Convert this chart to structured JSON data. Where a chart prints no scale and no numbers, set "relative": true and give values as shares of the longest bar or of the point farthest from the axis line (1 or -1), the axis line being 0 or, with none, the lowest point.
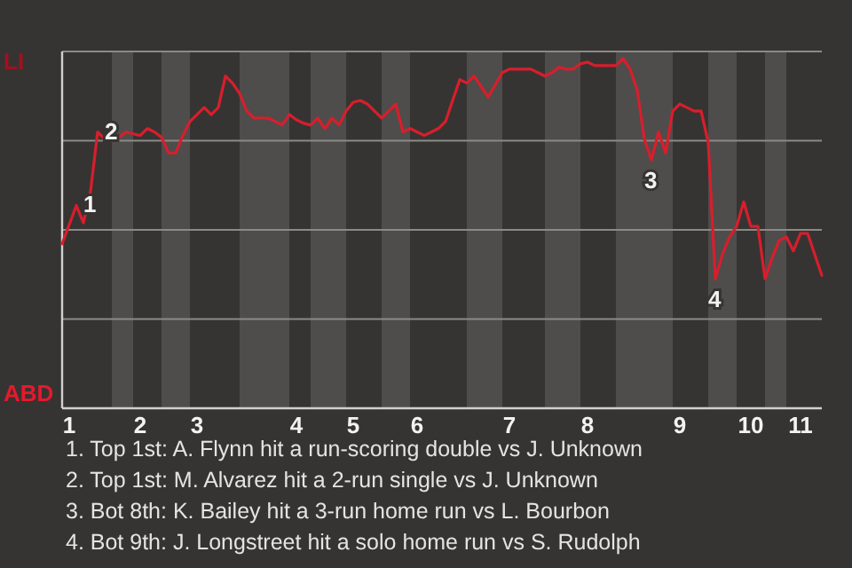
{
  "chart_data": {
    "type": "line",
    "relative": true,
    "grid": "y",
    "categories": [
      null,
      "1",
      null,
      null,
      null,
      null,
      null,
      null,
      null,
      null,
      null,
      "2",
      null,
      null,
      null,
      null,
      null,
      null,
      null,
      "3",
      null,
      null,
      null,
      null,
      null,
      null,
      null,
      null,
      null,
      null,
      null,
      null,
      null,
      "4",
      null,
      null,
      null,
      null,
      null,
      null,
      null,
      "5",
      null,
      null,
      null,
      null,
      null,
      null,
      null,
      null,
      "6",
      null,
      null,
      null,
      null,
      null,
      null,
      null,
      null,
      null,
      null,
      null,
      null,
      "7",
      null,
      null,
      null,
      null,
      null,
      null,
      null,
      null,
      null,
      null,
      "8",
      null,
      null,
      null,
      null,
      null,
      null,
      null,
      null,
      null,
      null,
      null,
      null,
      "9",
      null,
      null,
      null,
      null,
      null,
      null,
      null,
      null,
      null,
      "10",
      null,
      null,
      null,
      null,
      null,
      null,
      "11",
      null,
      null,
      null
    ],
    "series": [
      {
        "color": "#d81e2c",
        "values": [
          0.47,
          0.525,
          0.58,
          0.53,
          0.62,
          0.79,
          0.77,
          0.765,
          0.775,
          0.79,
          0.785,
          0.78,
          0.8,
          0.79,
          0.775,
          0.73,
          0.73,
          0.78,
          0.82,
          0.84,
          0.86,
          0.84,
          0.86,
          0.95,
          0.93,
          0.9,
          0.85,
          0.83,
          0.83,
          0.83,
          0.82,
          0.81,
          0.84,
          0.825,
          0.815,
          0.81,
          0.83,
          0.8,
          0.83,
          0.81,
          0.85,
          0.875,
          0.88,
          0.87,
          0.85,
          0.83,
          0.85,
          0.87,
          0.79,
          0.8,
          0.79,
          0.78,
          0.79,
          0.8,
          0.82,
          0.88,
          0.94,
          0.93,
          0.95,
          0.92,
          0.89,
          0.925,
          0.96,
          0.97,
          0.97,
          0.97,
          0.97,
          0.96,
          0.95,
          0.96,
          0.975,
          0.97,
          0.97,
          0.985,
          0.99,
          0.98,
          0.98,
          0.98,
          0.98,
          1,
          0.97,
          0.91,
          0.77,
          0.71,
          0.79,
          0.73,
          0.85,
          0.87,
          0.86,
          0.85,
          0.85,
          0.76,
          0.37,
          0.44,
          0.49,
          0.52,
          0.59,
          0.52,
          0.52,
          0.37,
          0.43,
          0.48,
          0.49,
          0.45,
          0.5,
          0.5,
          0.44,
          0.38
        ],
        "name": null
      }
    ],
    "annotations": [
      "LI",
      "ABD",
      {
        "text": "1",
        "y": 0.58
      },
      {
        "text": "2",
        "y": 0.79
      },
      {
        "text": "3",
        "y": 0.71
      },
      {
        "text": "4",
        "y": 0.37
      },
      "1. Top 1st: A. Flynn hit a run-scoring double vs J. Unknown",
      "2. Top 1st: M. Alvarez hit a 2-run single vs J. Unknown",
      "3. Bot 8th: K. Bailey hit a 3-run home run vs L. Bourbon",
      "4. Bot 9th: J. Longstreet hit a solo home run vs S. Rudolph"
    ]
  }
}
